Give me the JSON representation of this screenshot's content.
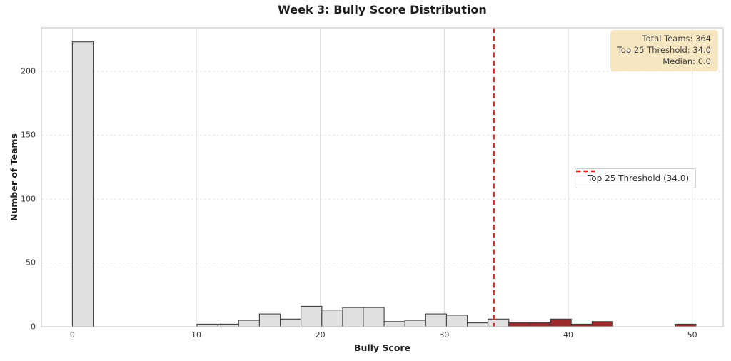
{
  "chart_data": {
    "type": "bar",
    "subtype": "histogram",
    "title": "Week 3: Bully Score Distribution",
    "xlabel": "Bully Score",
    "ylabel": "Number of Teams",
    "x_ticks": [
      0,
      10,
      20,
      30,
      40,
      50
    ],
    "y_ticks": [
      0,
      50,
      100,
      150,
      200
    ],
    "xlim": [
      -2.5,
      52.5
    ],
    "ylim": [
      0,
      234
    ],
    "grid": true,
    "bin_edges": [
      0,
      1.68,
      3.35,
      5.03,
      6.71,
      8.38,
      10.06,
      11.74,
      13.41,
      15.09,
      16.77,
      18.44,
      20.12,
      21.8,
      23.47,
      25.15,
      26.83,
      28.5,
      30.18,
      31.86,
      33.53,
      35.21,
      36.89,
      38.56,
      40.24,
      41.92,
      43.59,
      45.27,
      46.95,
      48.62,
      50.3
    ],
    "counts": [
      223,
      0,
      0,
      0,
      0,
      0,
      2,
      2,
      5,
      10,
      6,
      16,
      13,
      15,
      15,
      4,
      5,
      10,
      9,
      3,
      6,
      3,
      3,
      6,
      2,
      4,
      0,
      0,
      0,
      2
    ],
    "total_teams": 364,
    "threshold": 34.0,
    "median": 0.0,
    "legend": {
      "label": "Top 25 Threshold (34.0)",
      "position": "center-right"
    },
    "info_box": {
      "position": "top-right",
      "lines": [
        "Total Teams: 364",
        "Top 25 Threshold: 34.0",
        "Median: 0.0"
      ]
    },
    "colors": {
      "bar_below_threshold": "#e0e0e0",
      "bar_above_threshold": "#9c2a2a",
      "bar_edge": "#3f3f3f",
      "threshold_line": "#ee1b1b",
      "grid_vertical": "#d8d8d8",
      "grid_horizontal": "#e4e4e4",
      "spine": "#cccccc",
      "info_box_bg": "#f7e6c2",
      "text": "#1f1f1f"
    }
  }
}
